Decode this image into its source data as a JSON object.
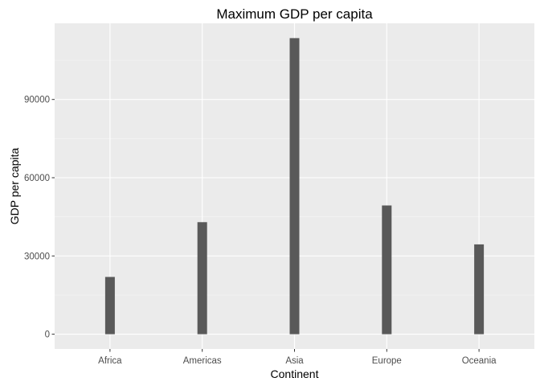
{
  "chart_data": {
    "type": "bar",
    "title": "Maximum GDP per capita",
    "xlabel": "Continent",
    "ylabel": "GDP per capita",
    "categories": [
      "Africa",
      "Americas",
      "Asia",
      "Europe",
      "Oceania"
    ],
    "values": [
      21951,
      42952,
      113523,
      49357,
      34435
    ],
    "ylim": [
      -5676,
      119199
    ],
    "yticks": [
      0,
      30000,
      60000,
      90000
    ],
    "ytick_labels": [
      "0",
      "30000",
      "60000",
      "90000"
    ],
    "grid": true,
    "legend": "none",
    "colors": {
      "panel_background": "#ebebeb",
      "grid_major": "#ffffff",
      "grid_minor": "#f5f5f5",
      "bar_fill": "#595959",
      "tick_mark": "#333333"
    }
  }
}
